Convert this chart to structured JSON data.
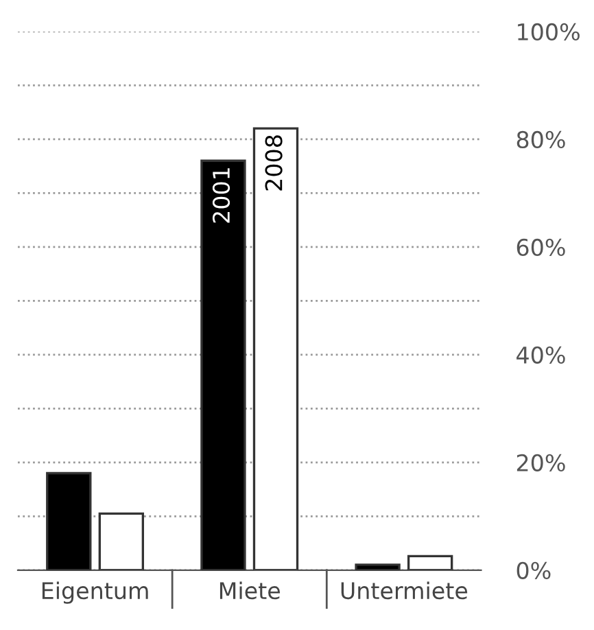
{
  "chart_data": {
    "type": "bar",
    "categories": [
      "Eigentum",
      "Miete",
      "Untermiete"
    ],
    "series": [
      {
        "name": "2001",
        "color": "#000000",
        "values": [
          18,
          76,
          1
        ]
      },
      {
        "name": "2008",
        "color": "#ffffff",
        "values": [
          10.5,
          82,
          2.6
        ]
      }
    ],
    "ylim": [
      0,
      100
    ],
    "yticks": [
      {
        "value": 0,
        "label": "0%"
      },
      {
        "value": 10,
        "label": null
      },
      {
        "value": 20,
        "label": "20%"
      },
      {
        "value": 30,
        "label": null
      },
      {
        "value": 40,
        "label": "40%"
      },
      {
        "value": 50,
        "label": null
      },
      {
        "value": 60,
        "label": "60%"
      },
      {
        "value": 70,
        "label": null
      },
      {
        "value": 80,
        "label": "80%"
      },
      {
        "value": 90,
        "label": null
      },
      {
        "value": 100,
        "label": "100%"
      }
    ],
    "grid": "y",
    "legend": false,
    "line_style": "dotted"
  }
}
